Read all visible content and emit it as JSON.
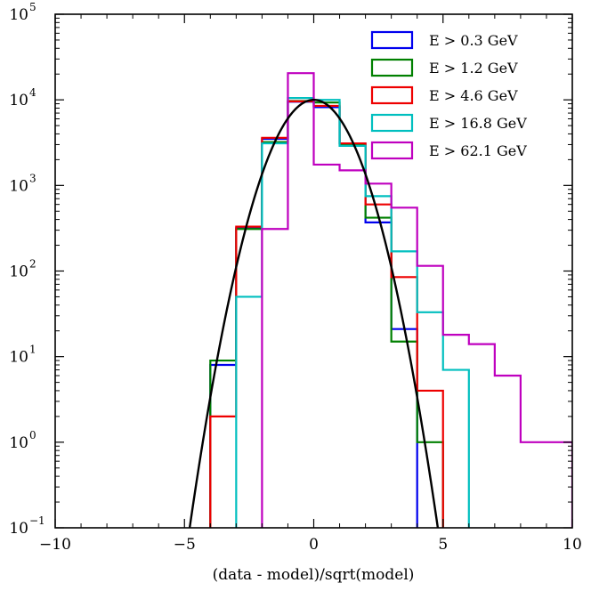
{
  "chart_data": {
    "type": "step-histogram",
    "title": "",
    "xlabel": "(data - model)/sqrt(model)",
    "ylabel": "",
    "xscale": "linear",
    "yscale": "log",
    "xlim": [
      -10,
      10
    ],
    "ylim": [
      0.1,
      100000
    ],
    "bin_width": 1,
    "x_ticks": [
      -10,
      -5,
      0,
      5,
      10
    ],
    "x_tick_labels": [
      "−10",
      "−5",
      "0",
      "5",
      "10"
    ],
    "y_ticks": [
      {
        "base": "10",
        "exp": "−1"
      },
      {
        "base": "10",
        "exp": "0"
      },
      {
        "base": "10",
        "exp": "1"
      },
      {
        "base": "10",
        "exp": "2"
      },
      {
        "base": "10",
        "exp": "3"
      },
      {
        "base": "10",
        "exp": "4"
      },
      {
        "base": "10",
        "exp": "5"
      }
    ],
    "y_tick_values": [
      0.1,
      1,
      10,
      100,
      1000,
      10000,
      100000
    ],
    "legend_position": "top-right",
    "series": [
      {
        "name": "E > 0.3 GeV",
        "color": "#0000ee",
        "bins": [
          [
            -4,
            -3,
            8
          ],
          [
            -3,
            -2,
            320
          ],
          [
            -2,
            -1,
            3500
          ],
          [
            -1,
            0,
            9500
          ],
          [
            0,
            1,
            8200
          ],
          [
            1,
            2,
            3100
          ],
          [
            2,
            3,
            370
          ],
          [
            3,
            4,
            21
          ]
        ]
      },
      {
        "name": "E > 1.2 GeV",
        "color": "#008000",
        "bins": [
          [
            -4,
            -3,
            9
          ],
          [
            -3,
            -2,
            310
          ],
          [
            -2,
            -1,
            3200
          ],
          [
            -1,
            0,
            9700
          ],
          [
            0,
            1,
            9300
          ],
          [
            1,
            2,
            3000
          ],
          [
            2,
            3,
            420
          ],
          [
            3,
            4,
            15
          ],
          [
            4,
            5,
            1
          ]
        ]
      },
      {
        "name": "E > 4.6 GeV",
        "color": "#ee0000",
        "bins": [
          [
            -4,
            -3,
            2
          ],
          [
            -3,
            -2,
            330
          ],
          [
            -2,
            -1,
            3600
          ],
          [
            -1,
            0,
            9600
          ],
          [
            0,
            1,
            8500
          ],
          [
            1,
            2,
            3100
          ],
          [
            2,
            3,
            600
          ],
          [
            3,
            4,
            85
          ],
          [
            4,
            5,
            4
          ]
        ]
      },
      {
        "name": "E > 16.8 GeV",
        "color": "#00bfbf",
        "bins": [
          [
            -3,
            -2,
            50
          ],
          [
            -2,
            -1,
            3100
          ],
          [
            -1,
            0,
            10500
          ],
          [
            0,
            1,
            10000
          ],
          [
            1,
            2,
            2900
          ],
          [
            2,
            3,
            750
          ],
          [
            3,
            4,
            170
          ],
          [
            4,
            5,
            33
          ],
          [
            5,
            6,
            7
          ]
        ]
      },
      {
        "name": "E > 62.1 GeV",
        "color": "#bf00bf",
        "bins": [
          [
            -2,
            -1,
            310
          ],
          [
            -1,
            0,
            20500
          ],
          [
            0,
            1,
            1750
          ],
          [
            1,
            2,
            1500
          ],
          [
            2,
            3,
            1050
          ],
          [
            3,
            4,
            550
          ],
          [
            4,
            5,
            115
          ],
          [
            5,
            6,
            18
          ],
          [
            6,
            7,
            14
          ],
          [
            7,
            8,
            6
          ],
          [
            8,
            10,
            1
          ]
        ]
      }
    ],
    "curve": {
      "name": "gaussian-fit",
      "color": "#000000",
      "amplitude": 10000,
      "mean": 0,
      "sigma": 1
    }
  }
}
